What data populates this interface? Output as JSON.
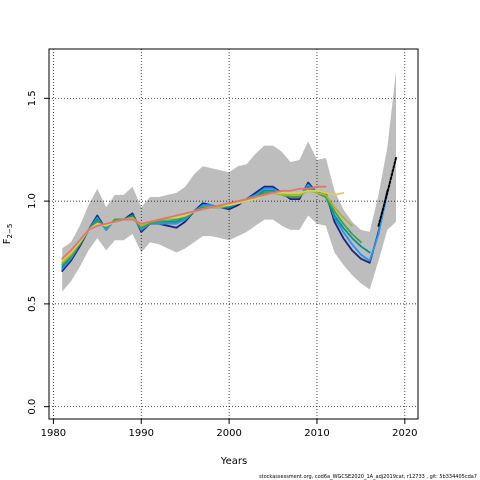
{
  "chart_data": {
    "type": "line",
    "xlabel": "Years",
    "ylabel": "F",
    "ylabel_sub": "2−5",
    "xlim": [
      1979.5,
      2021.5
    ],
    "ylim": [
      -0.06,
      1.74
    ],
    "x_ticks": [
      1980,
      1990,
      2000,
      2010,
      2020
    ],
    "y_ticks": [
      0.0,
      0.5,
      1.0,
      1.5
    ],
    "y_tick_labels": [
      "0.0",
      "0.5",
      "1.0",
      "1.5"
    ],
    "grid": true,
    "confidence_band": {
      "x": [
        1981,
        1982,
        1983,
        1984,
        1985,
        1986,
        1987,
        1988,
        1989,
        1990,
        1991,
        1992,
        1993,
        1994,
        1995,
        1996,
        1997,
        1998,
        1999,
        2000,
        2001,
        2002,
        2003,
        2004,
        2005,
        2006,
        2007,
        2008,
        2009,
        2010,
        2011,
        2012,
        2013,
        2014,
        2015,
        2016,
        2017,
        2018,
        2019
      ],
      "upper": [
        0.77,
        0.8,
        0.88,
        0.98,
        1.06,
        0.97,
        1.03,
        1.03,
        1.07,
        0.97,
        1.02,
        1.02,
        1.03,
        1.04,
        1.07,
        1.13,
        1.17,
        1.16,
        1.15,
        1.14,
        1.17,
        1.18,
        1.23,
        1.27,
        1.27,
        1.24,
        1.19,
        1.2,
        1.29,
        1.2,
        1.21,
        1.05,
        0.96,
        0.9,
        0.86,
        0.85,
        1.03,
        1.26,
        1.63
      ],
      "lower": [
        0.56,
        0.61,
        0.68,
        0.76,
        0.82,
        0.76,
        0.81,
        0.81,
        0.84,
        0.75,
        0.8,
        0.79,
        0.77,
        0.75,
        0.77,
        0.8,
        0.83,
        0.83,
        0.82,
        0.81,
        0.83,
        0.85,
        0.88,
        0.91,
        0.91,
        0.88,
        0.86,
        0.86,
        0.93,
        0.89,
        0.88,
        0.75,
        0.69,
        0.64,
        0.6,
        0.57,
        0.71,
        0.86,
        0.9
      ]
    },
    "series": [
      {
        "color": "#1a237e",
        "x": [
          1981,
          1982,
          1983,
          1984,
          1985,
          1986,
          1987,
          1988,
          1989,
          1990,
          1991,
          1992,
          1993,
          1994,
          1995,
          1996,
          1997,
          1998,
          1999,
          2000,
          2001,
          2002,
          2003,
          2004,
          2005,
          2006,
          2007,
          2008,
          2009,
          2010,
          2011,
          2012,
          2013,
          2014,
          2015,
          2016,
          2017,
          2018
        ],
        "y": [
          0.66,
          0.71,
          0.78,
          0.86,
          0.93,
          0.86,
          0.91,
          0.91,
          0.94,
          0.85,
          0.89,
          0.89,
          0.88,
          0.87,
          0.9,
          0.95,
          0.99,
          0.98,
          0.97,
          0.96,
          0.98,
          1.01,
          1.04,
          1.07,
          1.07,
          1.04,
          1.01,
          1.01,
          1.09,
          1.04,
          1.04,
          0.9,
          0.82,
          0.76,
          0.72,
          0.7,
          0.85,
          1.05
        ]
      },
      {
        "color": "#2196f3",
        "x": [
          1981,
          1982,
          1983,
          1984,
          1985,
          1986,
          1987,
          1988,
          1989,
          1990,
          1991,
          1992,
          1993,
          1994,
          1995,
          1996,
          1997,
          1998,
          1999,
          2000,
          2001,
          2002,
          2003,
          2004,
          2005,
          2006,
          2007,
          2008,
          2009,
          2010,
          2011,
          2012,
          2013,
          2014,
          2015,
          2016,
          2017,
          2018
        ],
        "y": [
          0.67,
          0.72,
          0.79,
          0.86,
          0.92,
          0.86,
          0.91,
          0.91,
          0.93,
          0.86,
          0.89,
          0.89,
          0.89,
          0.89,
          0.91,
          0.95,
          0.98,
          0.98,
          0.97,
          0.97,
          0.99,
          1.01,
          1.03,
          1.06,
          1.06,
          1.04,
          1.02,
          1.02,
          1.08,
          1.04,
          1.03,
          0.92,
          0.85,
          0.79,
          0.74,
          0.71,
          0.84,
          1.04
        ]
      },
      {
        "color": "#009688",
        "x": [
          1981,
          1982,
          1983,
          1984,
          1985,
          1986,
          1987,
          1988,
          1989,
          1990,
          1991,
          1992,
          1993,
          1994,
          1995,
          1996,
          1997,
          1998,
          1999,
          2000,
          2001,
          2002,
          2003,
          2004,
          2005,
          2006,
          2007,
          2008,
          2009,
          2010,
          2011,
          2012,
          2013,
          2014,
          2015,
          2016
        ],
        "y": [
          0.68,
          0.73,
          0.79,
          0.86,
          0.91,
          0.87,
          0.91,
          0.91,
          0.93,
          0.87,
          0.89,
          0.9,
          0.9,
          0.9,
          0.92,
          0.95,
          0.97,
          0.97,
          0.97,
          0.97,
          0.99,
          1.0,
          1.02,
          1.05,
          1.05,
          1.03,
          1.02,
          1.02,
          1.07,
          1.04,
          1.02,
          0.93,
          0.87,
          0.82,
          0.78,
          0.75
        ]
      },
      {
        "color": "#43a047",
        "x": [
          1981,
          1982,
          1983,
          1984,
          1985,
          1986,
          1987,
          1988,
          1989,
          1990,
          1991,
          1992,
          1993,
          1994,
          1995,
          1996,
          1997,
          1998,
          1999,
          2000,
          2001,
          2002,
          2003,
          2004,
          2005,
          2006,
          2007,
          2008,
          2009,
          2010,
          2011,
          2012,
          2013,
          2014,
          2015
        ],
        "y": [
          0.69,
          0.73,
          0.79,
          0.86,
          0.9,
          0.87,
          0.91,
          0.91,
          0.92,
          0.87,
          0.89,
          0.9,
          0.91,
          0.91,
          0.92,
          0.95,
          0.97,
          0.97,
          0.97,
          0.98,
          0.99,
          1.0,
          1.02,
          1.04,
          1.04,
          1.03,
          1.02,
          1.02,
          1.06,
          1.04,
          1.02,
          0.95,
          0.89,
          0.84,
          0.8
        ]
      },
      {
        "color": "#afb42b",
        "x": [
          1981,
          1982,
          1983,
          1984,
          1985,
          1986,
          1987,
          1988,
          1989,
          1990,
          1991,
          1992,
          1993,
          1994,
          1995,
          1996,
          1997,
          1998,
          1999,
          2000,
          2001,
          2002,
          2003,
          2004,
          2005,
          2006,
          2007,
          2008,
          2009,
          2010,
          2011,
          2012,
          2013,
          2014
        ],
        "y": [
          0.7,
          0.74,
          0.8,
          0.86,
          0.89,
          0.88,
          0.9,
          0.91,
          0.92,
          0.88,
          0.9,
          0.91,
          0.91,
          0.92,
          0.93,
          0.95,
          0.96,
          0.97,
          0.97,
          0.98,
          0.99,
          1.0,
          1.01,
          1.03,
          1.04,
          1.03,
          1.03,
          1.03,
          1.05,
          1.04,
          1.03,
          0.97,
          0.92,
          0.88
        ]
      },
      {
        "color": "#d4d25a",
        "x": [
          1981,
          1982,
          1983,
          1984,
          1985,
          1986,
          1987,
          1988,
          1989,
          1990,
          1991,
          1992,
          1993,
          1994,
          1995,
          1996,
          1997,
          1998,
          1999,
          2000,
          2001,
          2002,
          2003,
          2004,
          2005,
          2006,
          2007,
          2008,
          2009,
          2010,
          2011,
          2012,
          2013
        ],
        "y": [
          0.71,
          0.75,
          0.8,
          0.86,
          0.89,
          0.88,
          0.9,
          0.91,
          0.91,
          0.89,
          0.9,
          0.91,
          0.92,
          0.92,
          0.93,
          0.95,
          0.96,
          0.97,
          0.98,
          0.98,
          0.99,
          1.0,
          1.01,
          1.03,
          1.04,
          1.04,
          1.04,
          1.04,
          1.05,
          1.05,
          1.04,
          1.03,
          1.04
        ]
      },
      {
        "color": "#e57373",
        "x": [
          1981,
          1982,
          1983,
          1984,
          1985,
          1986,
          1987,
          1988,
          1989,
          1990,
          1991,
          1992,
          1993,
          1994,
          1995,
          1996,
          1997,
          1998,
          1999,
          2000,
          2001,
          2002,
          2003,
          2004,
          2005,
          2006,
          2007,
          2008,
          2009,
          2010,
          2011
        ],
        "y": [
          0.72,
          0.76,
          0.81,
          0.86,
          0.88,
          0.89,
          0.9,
          0.91,
          0.91,
          0.89,
          0.9,
          0.91,
          0.92,
          0.93,
          0.94,
          0.95,
          0.96,
          0.97,
          0.98,
          0.99,
          1.0,
          1.01,
          1.02,
          1.03,
          1.04,
          1.05,
          1.05,
          1.06,
          1.06,
          1.07,
          1.07
        ]
      },
      {
        "color": "#000000",
        "dashed": true,
        "x": [
          2017,
          2018,
          2019
        ],
        "y": [
          0.88,
          1.04,
          1.21
        ]
      }
    ]
  },
  "footer_text": "stockassessment.org, cod6a_WGCSE2020_1A_adj2019cat, r12733 , git: 5b334405cda7"
}
